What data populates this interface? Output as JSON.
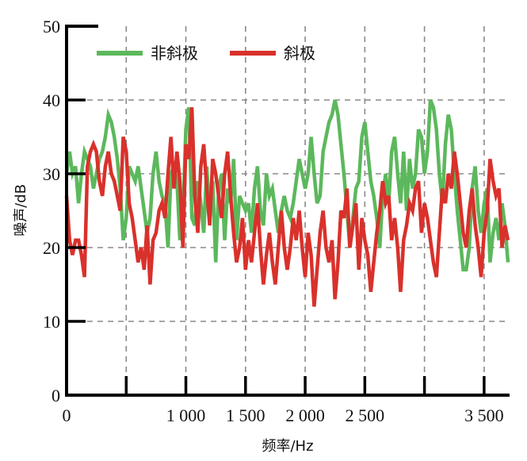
{
  "chart_data": {
    "type": "line",
    "xlabel": "频率/Hz",
    "ylabel": "噪声/dB",
    "xlim": [
      0,
      3700
    ],
    "ylim": [
      0,
      50
    ],
    "x_ticks": [
      {
        "value": 0,
        "label": "0"
      },
      {
        "value": 500,
        "label": ""
      },
      {
        "value": 1000,
        "label": "1 000"
      },
      {
        "value": 1500,
        "label": "1 500"
      },
      {
        "value": 2000,
        "label": "2 000"
      },
      {
        "value": 2500,
        "label": "2 500"
      },
      {
        "value": 3000,
        "label": ""
      },
      {
        "value": 3500,
        "label": "3 500"
      }
    ],
    "y_ticks": [
      {
        "value": 0,
        "label": "0"
      },
      {
        "value": 10,
        "label": "10"
      },
      {
        "value": 20,
        "label": "20"
      },
      {
        "value": 30,
        "label": "30"
      },
      {
        "value": 40,
        "label": "40"
      },
      {
        "value": 50,
        "label": "50"
      }
    ],
    "grid": true,
    "legend_position": "top-left",
    "series": [
      {
        "name": "非斜极",
        "color": "#5cb85c",
        "points": [
          [
            0,
            30
          ],
          [
            25,
            33
          ],
          [
            50,
            30
          ],
          [
            75,
            31
          ],
          [
            100,
            26
          ],
          [
            125,
            30
          ],
          [
            150,
            33
          ],
          [
            175,
            32
          ],
          [
            200,
            31
          ],
          [
            225,
            28
          ],
          [
            250,
            30
          ],
          [
            275,
            32
          ],
          [
            300,
            33
          ],
          [
            325,
            35
          ],
          [
            350,
            38
          ],
          [
            375,
            37
          ],
          [
            400,
            35
          ],
          [
            425,
            32
          ],
          [
            450,
            28
          ],
          [
            475,
            21
          ],
          [
            500,
            24
          ],
          [
            525,
            31
          ],
          [
            550,
            30
          ],
          [
            575,
            29
          ],
          [
            600,
            31
          ],
          [
            625,
            28
          ],
          [
            650,
            25
          ],
          [
            675,
            22
          ],
          [
            700,
            24
          ],
          [
            725,
            30
          ],
          [
            750,
            33
          ],
          [
            775,
            29
          ],
          [
            800,
            27
          ],
          [
            825,
            26
          ],
          [
            850,
            20
          ],
          [
            875,
            30
          ],
          [
            900,
            31
          ],
          [
            925,
            29
          ],
          [
            950,
            21
          ],
          [
            975,
            24
          ],
          [
            1000,
            36
          ],
          [
            1025,
            39
          ],
          [
            1050,
            24
          ],
          [
            1075,
            23
          ],
          [
            1100,
            29
          ],
          [
            1125,
            26
          ],
          [
            1150,
            22
          ],
          [
            1175,
            31
          ],
          [
            1200,
            24
          ],
          [
            1225,
            29
          ],
          [
            1250,
            18
          ],
          [
            1275,
            28
          ],
          [
            1300,
            30
          ],
          [
            1325,
            21
          ],
          [
            1350,
            28
          ],
          [
            1375,
            26
          ],
          [
            1400,
            32
          ],
          [
            1425,
            21
          ],
          [
            1450,
            27
          ],
          [
            1475,
            26
          ],
          [
            1500,
            25
          ],
          [
            1525,
            26
          ],
          [
            1550,
            22
          ],
          [
            1575,
            28
          ],
          [
            1600,
            31
          ],
          [
            1625,
            25
          ],
          [
            1650,
            23
          ],
          [
            1675,
            30
          ],
          [
            1700,
            27
          ],
          [
            1725,
            28
          ],
          [
            1750,
            25
          ],
          [
            1775,
            22
          ],
          [
            1800,
            25
          ],
          [
            1825,
            27
          ],
          [
            1850,
            25
          ],
          [
            1875,
            24
          ],
          [
            1900,
            26
          ],
          [
            1925,
            29
          ],
          [
            1950,
            32
          ],
          [
            1975,
            30
          ],
          [
            2000,
            28
          ],
          [
            2025,
            30
          ],
          [
            2050,
            35
          ],
          [
            2075,
            30
          ],
          [
            2100,
            26
          ],
          [
            2125,
            27
          ],
          [
            2150,
            33
          ],
          [
            2175,
            35
          ],
          [
            2200,
            37
          ],
          [
            2225,
            38
          ],
          [
            2250,
            40
          ],
          [
            2275,
            38
          ],
          [
            2300,
            34
          ],
          [
            2325,
            30
          ],
          [
            2350,
            25
          ],
          [
            2375,
            20
          ],
          [
            2400,
            24
          ],
          [
            2425,
            28
          ],
          [
            2450,
            29
          ],
          [
            2475,
            35
          ],
          [
            2500,
            37
          ],
          [
            2525,
            33
          ],
          [
            2550,
            29
          ],
          [
            2575,
            27
          ],
          [
            2600,
            24
          ],
          [
            2625,
            20
          ],
          [
            2650,
            27
          ],
          [
            2675,
            30
          ],
          [
            2700,
            26
          ],
          [
            2725,
            33
          ],
          [
            2750,
            35
          ],
          [
            2775,
            30
          ],
          [
            2800,
            26
          ],
          [
            2825,
            33
          ],
          [
            2850,
            25
          ],
          [
            2875,
            32
          ],
          [
            2900,
            28
          ],
          [
            2925,
            30
          ],
          [
            2950,
            36
          ],
          [
            2975,
            35
          ],
          [
            3000,
            30
          ],
          [
            3025,
            33
          ],
          [
            3050,
            40
          ],
          [
            3075,
            39
          ],
          [
            3100,
            36
          ],
          [
            3125,
            30
          ],
          [
            3150,
            26
          ],
          [
            3175,
            34
          ],
          [
            3200,
            38
          ],
          [
            3225,
            36
          ],
          [
            3250,
            30
          ],
          [
            3275,
            25
          ],
          [
            3300,
            21
          ],
          [
            3325,
            17
          ],
          [
            3350,
            17
          ],
          [
            3375,
            20
          ],
          [
            3400,
            28
          ],
          [
            3425,
            31
          ],
          [
            3450,
            25
          ],
          [
            3475,
            22
          ],
          [
            3500,
            26
          ],
          [
            3525,
            28
          ],
          [
            3550,
            18
          ],
          [
            3575,
            22
          ],
          [
            3600,
            24
          ],
          [
            3625,
            21
          ],
          [
            3650,
            26
          ],
          [
            3675,
            23
          ],
          [
            3700,
            18
          ]
        ]
      },
      {
        "name": "斜极",
        "color": "#d9312b",
        "points": [
          [
            0,
            27
          ],
          [
            25,
            21
          ],
          [
            50,
            19
          ],
          [
            75,
            21
          ],
          [
            100,
            21
          ],
          [
            125,
            19
          ],
          [
            150,
            16
          ],
          [
            175,
            31
          ],
          [
            200,
            33
          ],
          [
            225,
            34
          ],
          [
            250,
            33
          ],
          [
            275,
            29
          ],
          [
            300,
            27
          ],
          [
            325,
            31
          ],
          [
            350,
            33
          ],
          [
            375,
            30
          ],
          [
            400,
            29
          ],
          [
            425,
            27
          ],
          [
            450,
            25
          ],
          [
            475,
            35
          ],
          [
            500,
            33
          ],
          [
            525,
            26
          ],
          [
            550,
            24
          ],
          [
            575,
            21
          ],
          [
            600,
            18
          ],
          [
            625,
            20
          ],
          [
            650,
            17
          ],
          [
            675,
            23
          ],
          [
            700,
            15
          ],
          [
            725,
            21
          ],
          [
            750,
            22
          ],
          [
            775,
            25
          ],
          [
            800,
            26
          ],
          [
            825,
            24
          ],
          [
            850,
            30
          ],
          [
            875,
            35
          ],
          [
            900,
            28
          ],
          [
            925,
            33
          ],
          [
            950,
            29
          ],
          [
            975,
            20
          ],
          [
            1000,
            34
          ],
          [
            1025,
            32
          ],
          [
            1050,
            39
          ],
          [
            1075,
            27
          ],
          [
            1100,
            22
          ],
          [
            1125,
            31
          ],
          [
            1150,
            34
          ],
          [
            1175,
            28
          ],
          [
            1200,
            23
          ],
          [
            1225,
            32
          ],
          [
            1250,
            30
          ],
          [
            1275,
            27
          ],
          [
            1300,
            24
          ],
          [
            1325,
            30
          ],
          [
            1350,
            33
          ],
          [
            1375,
            27
          ],
          [
            1400,
            22
          ],
          [
            1425,
            18
          ],
          [
            1450,
            20
          ],
          [
            1475,
            24
          ],
          [
            1500,
            17
          ],
          [
            1525,
            21
          ],
          [
            1550,
            18
          ],
          [
            1575,
            22
          ],
          [
            1600,
            26
          ],
          [
            1625,
            20
          ],
          [
            1650,
            15
          ],
          [
            1675,
            19
          ],
          [
            1700,
            22
          ],
          [
            1725,
            18
          ],
          [
            1750,
            15
          ],
          [
            1775,
            20
          ],
          [
            1800,
            25
          ],
          [
            1825,
            20
          ],
          [
            1850,
            17
          ],
          [
            1875,
            20
          ],
          [
            1900,
            24
          ],
          [
            1925,
            21
          ],
          [
            1950,
            25
          ],
          [
            1975,
            20
          ],
          [
            2000,
            16
          ],
          [
            2025,
            22
          ],
          [
            2050,
            19
          ],
          [
            2075,
            12
          ],
          [
            2100,
            17
          ],
          [
            2125,
            22
          ],
          [
            2150,
            25
          ],
          [
            2175,
            20
          ],
          [
            2200,
            18
          ],
          [
            2225,
            21
          ],
          [
            2250,
            13
          ],
          [
            2275,
            18
          ],
          [
            2300,
            25
          ],
          [
            2325,
            24
          ],
          [
            2350,
            28
          ],
          [
            2375,
            20
          ],
          [
            2400,
            23
          ],
          [
            2425,
            26
          ],
          [
            2450,
            17
          ],
          [
            2475,
            24
          ],
          [
            2500,
            21
          ],
          [
            2525,
            19
          ],
          [
            2550,
            14
          ],
          [
            2575,
            18
          ],
          [
            2600,
            22
          ],
          [
            2625,
            25
          ],
          [
            2650,
            29
          ],
          [
            2675,
            26
          ],
          [
            2700,
            27
          ],
          [
            2725,
            21
          ],
          [
            2750,
            24
          ],
          [
            2775,
            20
          ],
          [
            2800,
            14
          ],
          [
            2825,
            21
          ],
          [
            2850,
            23
          ],
          [
            2875,
            26
          ],
          [
            2900,
            25
          ],
          [
            2925,
            28
          ],
          [
            2950,
            29
          ],
          [
            2975,
            22
          ],
          [
            3000,
            26
          ],
          [
            3025,
            24
          ],
          [
            3050,
            21
          ],
          [
            3075,
            18
          ],
          [
            3100,
            16
          ],
          [
            3125,
            22
          ],
          [
            3150,
            28
          ],
          [
            3175,
            26
          ],
          [
            3200,
            30
          ],
          [
            3225,
            28
          ],
          [
            3250,
            33
          ],
          [
            3275,
            30
          ],
          [
            3300,
            26
          ],
          [
            3325,
            22
          ],
          [
            3350,
            20
          ],
          [
            3375,
            25
          ],
          [
            3400,
            28
          ],
          [
            3425,
            23
          ],
          [
            3450,
            20
          ],
          [
            3475,
            16
          ],
          [
            3500,
            22
          ],
          [
            3525,
            25
          ],
          [
            3550,
            32
          ],
          [
            3575,
            29
          ],
          [
            3600,
            27
          ],
          [
            3625,
            28
          ],
          [
            3650,
            20
          ],
          [
            3675,
            23
          ],
          [
            3700,
            21
          ]
        ]
      }
    ]
  }
}
